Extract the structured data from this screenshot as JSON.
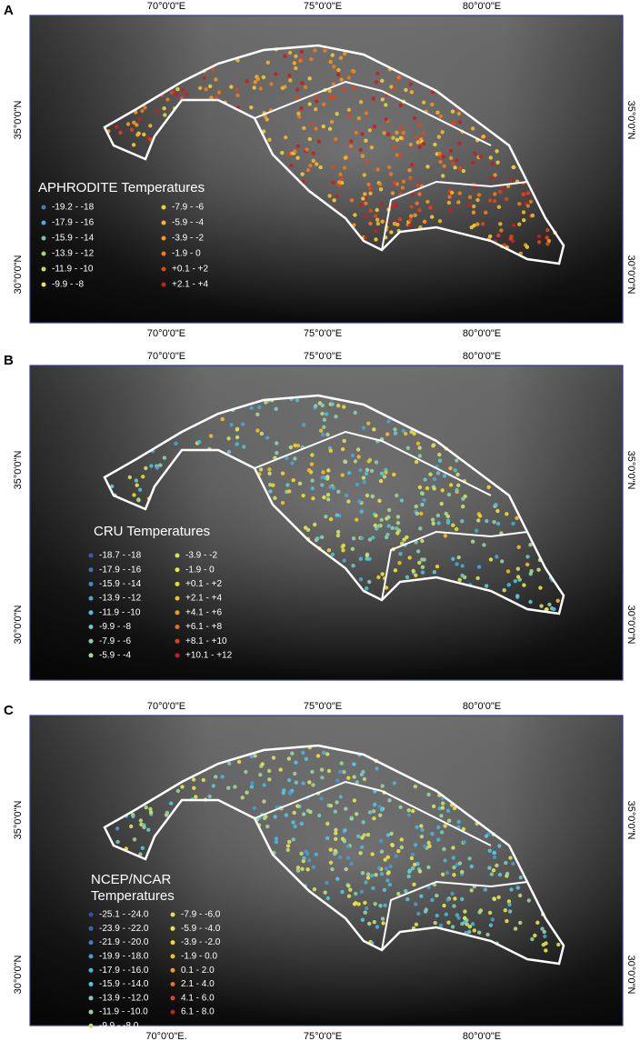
{
  "panels": [
    {
      "label": "A",
      "top_labels": [
        "70°0'0\"E",
        "75°0'0\"E",
        "80°0'0\"E"
      ],
      "bottom_labels": [
        "70°0'0\"E",
        "75°0'0\"E",
        "80°0'0\"E"
      ],
      "lat_labels": [
        "35°0'0\"N",
        "30°0'0\"N"
      ],
      "legend": {
        "title_lines": [
          "APHRODITE Temperatures"
        ],
        "columns": [
          [
            {
              "label": "-19.2 - -18",
              "color": "#3a7ec4"
            },
            {
              "label": "-17.9 - -16",
              "color": "#5aa8c8"
            },
            {
              "label": "-15.9 - -14",
              "color": "#7fc0a8"
            },
            {
              "label": "-13.9 - -12",
              "color": "#a6cf80"
            },
            {
              "label": "-11.9 - -10",
              "color": "#c8de60"
            },
            {
              "label": "-9.9 - -8",
              "color": "#e8e840"
            }
          ],
          [
            {
              "label": "-7.9 - -6",
              "color": "#f0d030"
            },
            {
              "label": "-5.9 - -4",
              "color": "#f5b62a"
            },
            {
              "label": "-3.9 - -2",
              "color": "#f29a22"
            },
            {
              "label": "-1.9 - 0",
              "color": "#ee7a1c"
            },
            {
              "label": "+0.1 - +2",
              "color": "#e2441a"
            },
            {
              "label": "+2.1 - +4",
              "color": "#c81e1e"
            }
          ]
        ]
      }
    },
    {
      "label": "B",
      "top_labels": [
        "70°0'0\"E",
        "75°0'0\"E",
        "80°0'0\"E"
      ],
      "lat_labels": [
        "35°0'0\"N",
        "30°0'0\"N"
      ],
      "legend": {
        "title_lines": [
          "CRU Temperatures"
        ],
        "columns": [
          [
            {
              "label": "-18.7 - -18",
              "color": "#3a5ab0"
            },
            {
              "label": "-17.9 - -16",
              "color": "#4470b8"
            },
            {
              "label": "-15.9 - -14",
              "color": "#4a8ac4"
            },
            {
              "label": "-13.9 - -12",
              "color": "#4aa6d0"
            },
            {
              "label": "-11.9 - -10",
              "color": "#4ac0dc"
            },
            {
              "label": "-9.9 - -8",
              "color": "#6cc8c8"
            },
            {
              "label": "-7.9 - -6",
              "color": "#8ed0a8"
            },
            {
              "label": "-5.9 - -4",
              "color": "#b0da88"
            }
          ],
          [
            {
              "label": "-3.9 - -2",
              "color": "#d0e268"
            },
            {
              "label": "-1.9 - 0",
              "color": "#e8e840"
            },
            {
              "label": "+0.1 - +2",
              "color": "#f2dc20"
            },
            {
              "label": "+2.1 - +4",
              "color": "#f5c020"
            },
            {
              "label": "+4.1 - +6",
              "color": "#f29a22"
            },
            {
              "label": "+6.1 - +8",
              "color": "#ec701c"
            },
            {
              "label": "+8.1 - +10",
              "color": "#e0441a"
            },
            {
              "label": "+10.1 - +12",
              "color": "#c81e1e"
            }
          ]
        ]
      }
    },
    {
      "label": "C",
      "top_labels": [
        "70°0'0\"E",
        "75°0'0\"E",
        "80°0'0\"E"
      ],
      "bottom_labels": [
        "70°0'0\"E.",
        "75°0'0\"E",
        "80°0'0\"E"
      ],
      "lat_labels": [
        "35°0'0\"N",
        "30°0'0\"N"
      ],
      "legend": {
        "title_lines": [
          "NCEP/NCAR",
          "Temperatures"
        ],
        "columns": [
          [
            {
              "label": "-25.1 - -24.0",
              "color": "#3a4aa8"
            },
            {
              "label": "-23.9 - -22.0",
              "color": "#3e62b4"
            },
            {
              "label": "-21.9 - -20.0",
              "color": "#447ec0"
            },
            {
              "label": "-19.9 - -18.0",
              "color": "#4a9acc"
            },
            {
              "label": "-17.9 - -16.0",
              "color": "#4ab6d8"
            },
            {
              "label": "-15.9 - -14.0",
              "color": "#54c6e0"
            },
            {
              "label": "-13.9 - -12.0",
              "color": "#76ccc0"
            },
            {
              "label": "-11.9 - -10.0",
              "color": "#9ad4a0"
            },
            {
              "label": "-9.9 - -8.0",
              "color": "#c0de78"
            }
          ],
          [
            {
              "label": "-7.9 - -6.0",
              "color": "#dce458"
            },
            {
              "label": "-5.9 - -4.0",
              "color": "#ece640"
            },
            {
              "label": "-3.9 - -2.0",
              "color": "#f4dc20"
            },
            {
              "label": "-1.9 - 0.0",
              "color": "#f5c020"
            },
            {
              "label": "0.1 - 2.0",
              "color": "#f29a22"
            },
            {
              "label": "2.1 - 4.0",
              "color": "#ec701c"
            },
            {
              "label": "4.1 - 6.0",
              "color": "#e0441a"
            },
            {
              "label": "6.1 - 8.0",
              "color": "#c81e1e"
            }
          ]
        ]
      }
    }
  ]
}
